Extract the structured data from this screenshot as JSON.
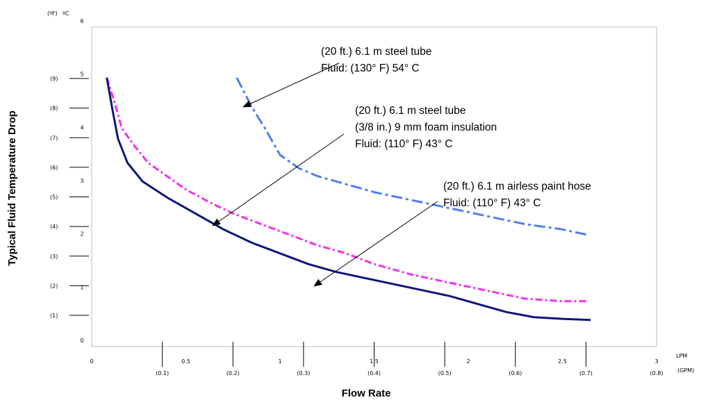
{
  "chart_data": {
    "type": "line",
    "xlabel": "Flow Rate",
    "ylabel": "Typical Fluid Temperature Drop",
    "x_unit_primary": "LPM",
    "x_unit_secondary": "(GPM)",
    "y_unit_primary": "ºC",
    "y_unit_secondary": "(ºF)",
    "xlim": [
      0,
      3
    ],
    "ylim": [
      0,
      6
    ],
    "grid": false,
    "x_ticks_primary": [
      {
        "value": 0,
        "label": "0"
      },
      {
        "value": 0.5,
        "label": "0.5"
      },
      {
        "value": 1,
        "label": "1"
      },
      {
        "value": 1.5,
        "label": "1.5"
      },
      {
        "value": 2,
        "label": "2"
      },
      {
        "value": 2.5,
        "label": "2.5"
      },
      {
        "value": 3,
        "label": "3"
      }
    ],
    "x_ticks_secondary": [
      {
        "value": 0.1,
        "label": "(0.1)"
      },
      {
        "value": 0.2,
        "label": "(0.2)"
      },
      {
        "value": 0.3,
        "label": "(0.3)"
      },
      {
        "value": 0.4,
        "label": "(0.4)"
      },
      {
        "value": 0.5,
        "label": "(0.5)"
      },
      {
        "value": 0.6,
        "label": "(0.6)"
      },
      {
        "value": 0.7,
        "label": "(0.7)"
      },
      {
        "value": 0.8,
        "label": "(0.8)"
      }
    ],
    "y_ticks_primary": [
      {
        "value": 0,
        "label": "0"
      },
      {
        "value": 1,
        "label": "1"
      },
      {
        "value": 2,
        "label": "2"
      },
      {
        "value": 3,
        "label": "3"
      },
      {
        "value": 4,
        "label": "4"
      },
      {
        "value": 5,
        "label": "5"
      },
      {
        "value": 6,
        "label": "6"
      }
    ],
    "y_ticks_secondary": [
      {
        "value": 1,
        "label": "(1)"
      },
      {
        "value": 2,
        "label": "(2)"
      },
      {
        "value": 3,
        "label": "(3)"
      },
      {
        "value": 4,
        "label": "(4)"
      },
      {
        "value": 5,
        "label": "(5)"
      },
      {
        "value": 6,
        "label": "(6)"
      },
      {
        "value": 7,
        "label": "(7)"
      },
      {
        "value": 8,
        "label": "(8)"
      },
      {
        "value": 9,
        "label": "(9)"
      }
    ],
    "series": [
      {
        "id": "steel-tube-54c",
        "color": "#4f7ef0",
        "dash": "long-dash-dot",
        "points": [
          [
            0.77,
            5.05
          ],
          [
            0.85,
            4.5
          ],
          [
            0.92,
            4.1
          ],
          [
            1.0,
            3.6
          ],
          [
            1.1,
            3.35
          ],
          [
            1.2,
            3.2
          ],
          [
            1.35,
            3.05
          ],
          [
            1.5,
            2.9
          ],
          [
            1.7,
            2.75
          ],
          [
            1.9,
            2.6
          ],
          [
            2.1,
            2.45
          ],
          [
            2.3,
            2.3
          ],
          [
            2.5,
            2.2
          ],
          [
            2.63,
            2.1
          ]
        ]
      },
      {
        "id": "steel-tube-insulated-43c",
        "color": "#f22ef2",
        "dash": "dash-dot",
        "points": [
          [
            0.08,
            5.05
          ],
          [
            0.12,
            4.6
          ],
          [
            0.16,
            4.1
          ],
          [
            0.22,
            3.8
          ],
          [
            0.3,
            3.45
          ],
          [
            0.4,
            3.2
          ],
          [
            0.5,
            2.95
          ],
          [
            0.62,
            2.72
          ],
          [
            0.75,
            2.5
          ],
          [
            0.9,
            2.3
          ],
          [
            1.05,
            2.1
          ],
          [
            1.2,
            1.9
          ],
          [
            1.35,
            1.75
          ],
          [
            1.5,
            1.55
          ],
          [
            1.7,
            1.35
          ],
          [
            1.9,
            1.2
          ],
          [
            2.1,
            1.05
          ],
          [
            2.3,
            0.9
          ],
          [
            2.5,
            0.85
          ],
          [
            2.63,
            0.85
          ]
        ]
      },
      {
        "id": "airless-paint-hose-43c",
        "color": "#0c157a",
        "dash": "solid",
        "points": [
          [
            0.08,
            5.05
          ],
          [
            0.11,
            4.45
          ],
          [
            0.14,
            3.9
          ],
          [
            0.19,
            3.45
          ],
          [
            0.27,
            3.1
          ],
          [
            0.4,
            2.8
          ],
          [
            0.55,
            2.5
          ],
          [
            0.7,
            2.2
          ],
          [
            0.85,
            1.95
          ],
          [
            1.0,
            1.75
          ],
          [
            1.15,
            1.55
          ],
          [
            1.3,
            1.4
          ],
          [
            1.5,
            1.25
          ],
          [
            1.7,
            1.1
          ],
          [
            1.9,
            0.95
          ],
          [
            2.05,
            0.8
          ],
          [
            2.2,
            0.65
          ],
          [
            2.35,
            0.55
          ],
          [
            2.5,
            0.52
          ],
          [
            2.65,
            0.5
          ]
        ]
      }
    ],
    "annotations": [
      {
        "lines": [
          "(20 ft.) 6.1 m steel tube",
          "Fluid: (130° F) 54° C"
        ],
        "target_series": "steel-tube-54c"
      },
      {
        "lines": [
          "(20 ft.) 6.1 m steel tube",
          "(3/8 in.) 9 mm foam insulation",
          "Fluid: (110° F) 43° C"
        ],
        "target_series": "steel-tube-insulated-43c"
      },
      {
        "lines": [
          "(20 ft.) 6.1 m airless paint hose",
          "Fluid: (110° F) 43° C"
        ],
        "target_series": "airless-paint-hose-43c"
      }
    ]
  }
}
